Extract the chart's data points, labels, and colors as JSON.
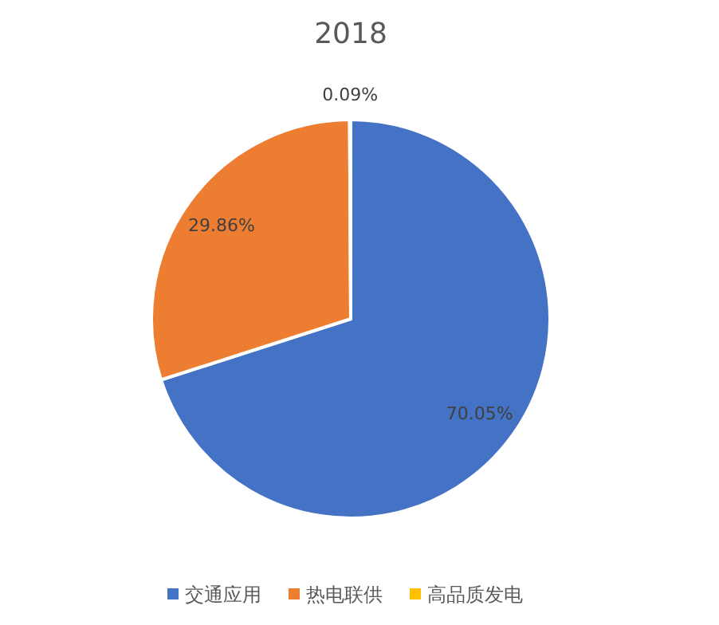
{
  "chart_data": {
    "type": "pie",
    "title": "2018",
    "categories": [
      "交通应用",
      "热电联供",
      "高品质发电"
    ],
    "values": [
      70.05,
      29.86,
      0.09
    ],
    "colors": [
      "#4472c4",
      "#ed7d31",
      "#ffc000"
    ],
    "value_labels": [
      "70.05%",
      "29.86%",
      "0.09%"
    ],
    "legend": "bottom"
  }
}
